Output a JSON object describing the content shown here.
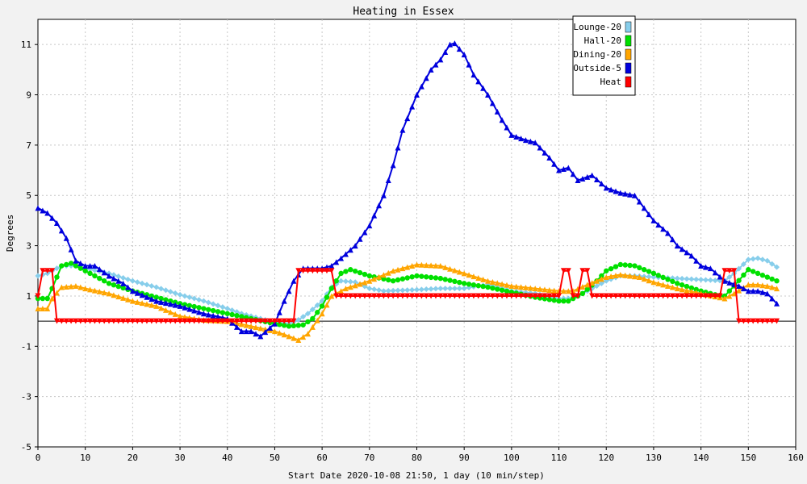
{
  "chart_data": {
    "type": "line",
    "title": "Heating in Essex",
    "xlabel": "Start Date 2020-10-08 21:50, 1 day (10 min/step)",
    "ylabel": "Degrees",
    "xlim": [
      0,
      160
    ],
    "ylim": [
      -5,
      12
    ],
    "x_ticks": [
      0,
      10,
      20,
      30,
      40,
      50,
      60,
      70,
      80,
      90,
      100,
      110,
      120,
      130,
      140,
      150,
      160
    ],
    "y_ticks": [
      -5,
      -3,
      -1,
      1,
      3,
      5,
      7,
      9,
      11
    ],
    "grid": true,
    "legend_position": "top-right",
    "series": [
      {
        "name": "Lounge-20",
        "color": "#87ceeb",
        "marker": "diamond",
        "points": [
          [
            0,
            1.8
          ],
          [
            2,
            1.9
          ],
          [
            5,
            2.2
          ],
          [
            8,
            2.2
          ],
          [
            10,
            2.1
          ],
          [
            15,
            1.9
          ],
          [
            20,
            1.6
          ],
          [
            25,
            1.35
          ],
          [
            30,
            1.05
          ],
          [
            35,
            0.8
          ],
          [
            40,
            0.5
          ],
          [
            43,
            0.3
          ],
          [
            47,
            0.1
          ],
          [
            50,
            -0.05
          ],
          [
            53,
            -0.1
          ],
          [
            55,
            0.05
          ],
          [
            57,
            0.3
          ],
          [
            60,
            0.8
          ],
          [
            62,
            1.35
          ],
          [
            64,
            1.6
          ],
          [
            67,
            1.55
          ],
          [
            70,
            1.3
          ],
          [
            73,
            1.2
          ],
          [
            80,
            1.25
          ],
          [
            85,
            1.3
          ],
          [
            90,
            1.3
          ],
          [
            93,
            1.4
          ],
          [
            95,
            1.45
          ],
          [
            98,
            1.3
          ],
          [
            100,
            1.2
          ],
          [
            105,
            1.1
          ],
          [
            110,
            0.9
          ],
          [
            113,
            0.9
          ],
          [
            115,
            1.1
          ],
          [
            118,
            1.4
          ],
          [
            120,
            1.6
          ],
          [
            123,
            1.8
          ],
          [
            126,
            1.8
          ],
          [
            130,
            1.75
          ],
          [
            135,
            1.7
          ],
          [
            140,
            1.65
          ],
          [
            145,
            1.6
          ],
          [
            147,
            1.9
          ],
          [
            150,
            2.45
          ],
          [
            152,
            2.5
          ],
          [
            154,
            2.4
          ],
          [
            156,
            2.15
          ]
        ]
      },
      {
        "name": "Hall-20",
        "color": "#00e000",
        "marker": "circle",
        "points": [
          [
            0,
            0.9
          ],
          [
            2,
            0.9
          ],
          [
            3,
            1.3
          ],
          [
            5,
            2.2
          ],
          [
            7,
            2.3
          ],
          [
            10,
            2.0
          ],
          [
            15,
            1.5
          ],
          [
            20,
            1.2
          ],
          [
            25,
            0.95
          ],
          [
            30,
            0.7
          ],
          [
            35,
            0.5
          ],
          [
            40,
            0.3
          ],
          [
            45,
            0.1
          ],
          [
            50,
            -0.1
          ],
          [
            53,
            -0.2
          ],
          [
            56,
            -0.15
          ],
          [
            58,
            0.1
          ],
          [
            60,
            0.6
          ],
          [
            62,
            1.3
          ],
          [
            64,
            1.9
          ],
          [
            66,
            2.05
          ],
          [
            70,
            1.8
          ],
          [
            75,
            1.6
          ],
          [
            80,
            1.8
          ],
          [
            85,
            1.7
          ],
          [
            90,
            1.5
          ],
          [
            95,
            1.35
          ],
          [
            100,
            1.15
          ],
          [
            105,
            0.95
          ],
          [
            110,
            0.8
          ],
          [
            112,
            0.8
          ],
          [
            115,
            1.1
          ],
          [
            118,
            1.6
          ],
          [
            120,
            2.0
          ],
          [
            123,
            2.25
          ],
          [
            126,
            2.2
          ],
          [
            130,
            1.9
          ],
          [
            135,
            1.5
          ],
          [
            140,
            1.2
          ],
          [
            143,
            1.05
          ],
          [
            145,
            1.0
          ],
          [
            147,
            1.4
          ],
          [
            150,
            2.05
          ],
          [
            152,
            1.9
          ],
          [
            154,
            1.75
          ],
          [
            156,
            1.6
          ]
        ]
      },
      {
        "name": "Dining-20",
        "color": "#ffa500",
        "marker": "triangle",
        "points": [
          [
            0,
            0.5
          ],
          [
            2,
            0.5
          ],
          [
            3,
            0.9
          ],
          [
            5,
            1.35
          ],
          [
            8,
            1.4
          ],
          [
            10,
            1.3
          ],
          [
            15,
            1.1
          ],
          [
            20,
            0.8
          ],
          [
            25,
            0.6
          ],
          [
            30,
            0.2
          ],
          [
            35,
            0.05
          ],
          [
            40,
            0.0
          ],
          [
            45,
            -0.2
          ],
          [
            50,
            -0.4
          ],
          [
            53,
            -0.6
          ],
          [
            55,
            -0.75
          ],
          [
            57,
            -0.5
          ],
          [
            60,
            0.3
          ],
          [
            62,
            1.0
          ],
          [
            65,
            1.3
          ],
          [
            70,
            1.6
          ],
          [
            75,
            2.0
          ],
          [
            80,
            2.25
          ],
          [
            85,
            2.2
          ],
          [
            90,
            1.9
          ],
          [
            95,
            1.6
          ],
          [
            100,
            1.4
          ],
          [
            105,
            1.3
          ],
          [
            110,
            1.2
          ],
          [
            113,
            1.2
          ],
          [
            116,
            1.45
          ],
          [
            120,
            1.75
          ],
          [
            123,
            1.85
          ],
          [
            127,
            1.75
          ],
          [
            130,
            1.55
          ],
          [
            135,
            1.3
          ],
          [
            140,
            1.1
          ],
          [
            145,
            0.9
          ],
          [
            147,
            1.1
          ],
          [
            150,
            1.45
          ],
          [
            152,
            1.45
          ],
          [
            154,
            1.4
          ],
          [
            156,
            1.3
          ]
        ]
      },
      {
        "name": "Outside-5",
        "color": "#0000dd",
        "marker": "triangle",
        "points": [
          [
            0,
            4.5
          ],
          [
            2,
            4.3
          ],
          [
            4,
            3.9
          ],
          [
            6,
            3.3
          ],
          [
            8,
            2.4
          ],
          [
            10,
            2.2
          ],
          [
            12,
            2.2
          ],
          [
            15,
            1.8
          ],
          [
            18,
            1.5
          ],
          [
            20,
            1.2
          ],
          [
            25,
            0.8
          ],
          [
            30,
            0.6
          ],
          [
            35,
            0.3
          ],
          [
            40,
            0.1
          ],
          [
            43,
            -0.4
          ],
          [
            45,
            -0.4
          ],
          [
            47,
            -0.6
          ],
          [
            50,
            -0.1
          ],
          [
            52,
            0.8
          ],
          [
            54,
            1.6
          ],
          [
            56,
            2.1
          ],
          [
            60,
            2.1
          ],
          [
            62,
            2.2
          ],
          [
            64,
            2.5
          ],
          [
            67,
            3.0
          ],
          [
            70,
            3.8
          ],
          [
            73,
            5.0
          ],
          [
            75,
            6.2
          ],
          [
            77,
            7.6
          ],
          [
            80,
            9.0
          ],
          [
            83,
            10.0
          ],
          [
            85,
            10.4
          ],
          [
            87,
            11.0
          ],
          [
            88,
            11.05
          ],
          [
            90,
            10.6
          ],
          [
            92,
            9.8
          ],
          [
            95,
            9.0
          ],
          [
            98,
            8.0
          ],
          [
            100,
            7.4
          ],
          [
            103,
            7.2
          ],
          [
            105,
            7.1
          ],
          [
            108,
            6.5
          ],
          [
            110,
            6.0
          ],
          [
            112,
            6.1
          ],
          [
            114,
            5.6
          ],
          [
            117,
            5.8
          ],
          [
            120,
            5.3
          ],
          [
            123,
            5.1
          ],
          [
            126,
            5.0
          ],
          [
            130,
            4.0
          ],
          [
            133,
            3.5
          ],
          [
            135,
            3.0
          ],
          [
            138,
            2.6
          ],
          [
            140,
            2.2
          ],
          [
            142,
            2.1
          ],
          [
            145,
            1.6
          ],
          [
            148,
            1.4
          ],
          [
            150,
            1.2
          ],
          [
            152,
            1.2
          ],
          [
            154,
            1.1
          ],
          [
            156,
            0.7
          ]
        ]
      },
      {
        "name": "Heat",
        "color": "#ff0000",
        "marker": "triangle-down",
        "points": [
          [
            0,
            1
          ],
          [
            1,
            2
          ],
          [
            3,
            2
          ],
          [
            4,
            0
          ],
          [
            54,
            0
          ],
          [
            55,
            2
          ],
          [
            62,
            2
          ],
          [
            63,
            1
          ],
          [
            110,
            1
          ],
          [
            111,
            2
          ],
          [
            112,
            2
          ],
          [
            113,
            1
          ],
          [
            114,
            1
          ],
          [
            115,
            2
          ],
          [
            116,
            2
          ],
          [
            117,
            1
          ],
          [
            144,
            1
          ],
          [
            145,
            2
          ],
          [
            147,
            2
          ],
          [
            148,
            0
          ],
          [
            156,
            0
          ]
        ]
      }
    ]
  }
}
